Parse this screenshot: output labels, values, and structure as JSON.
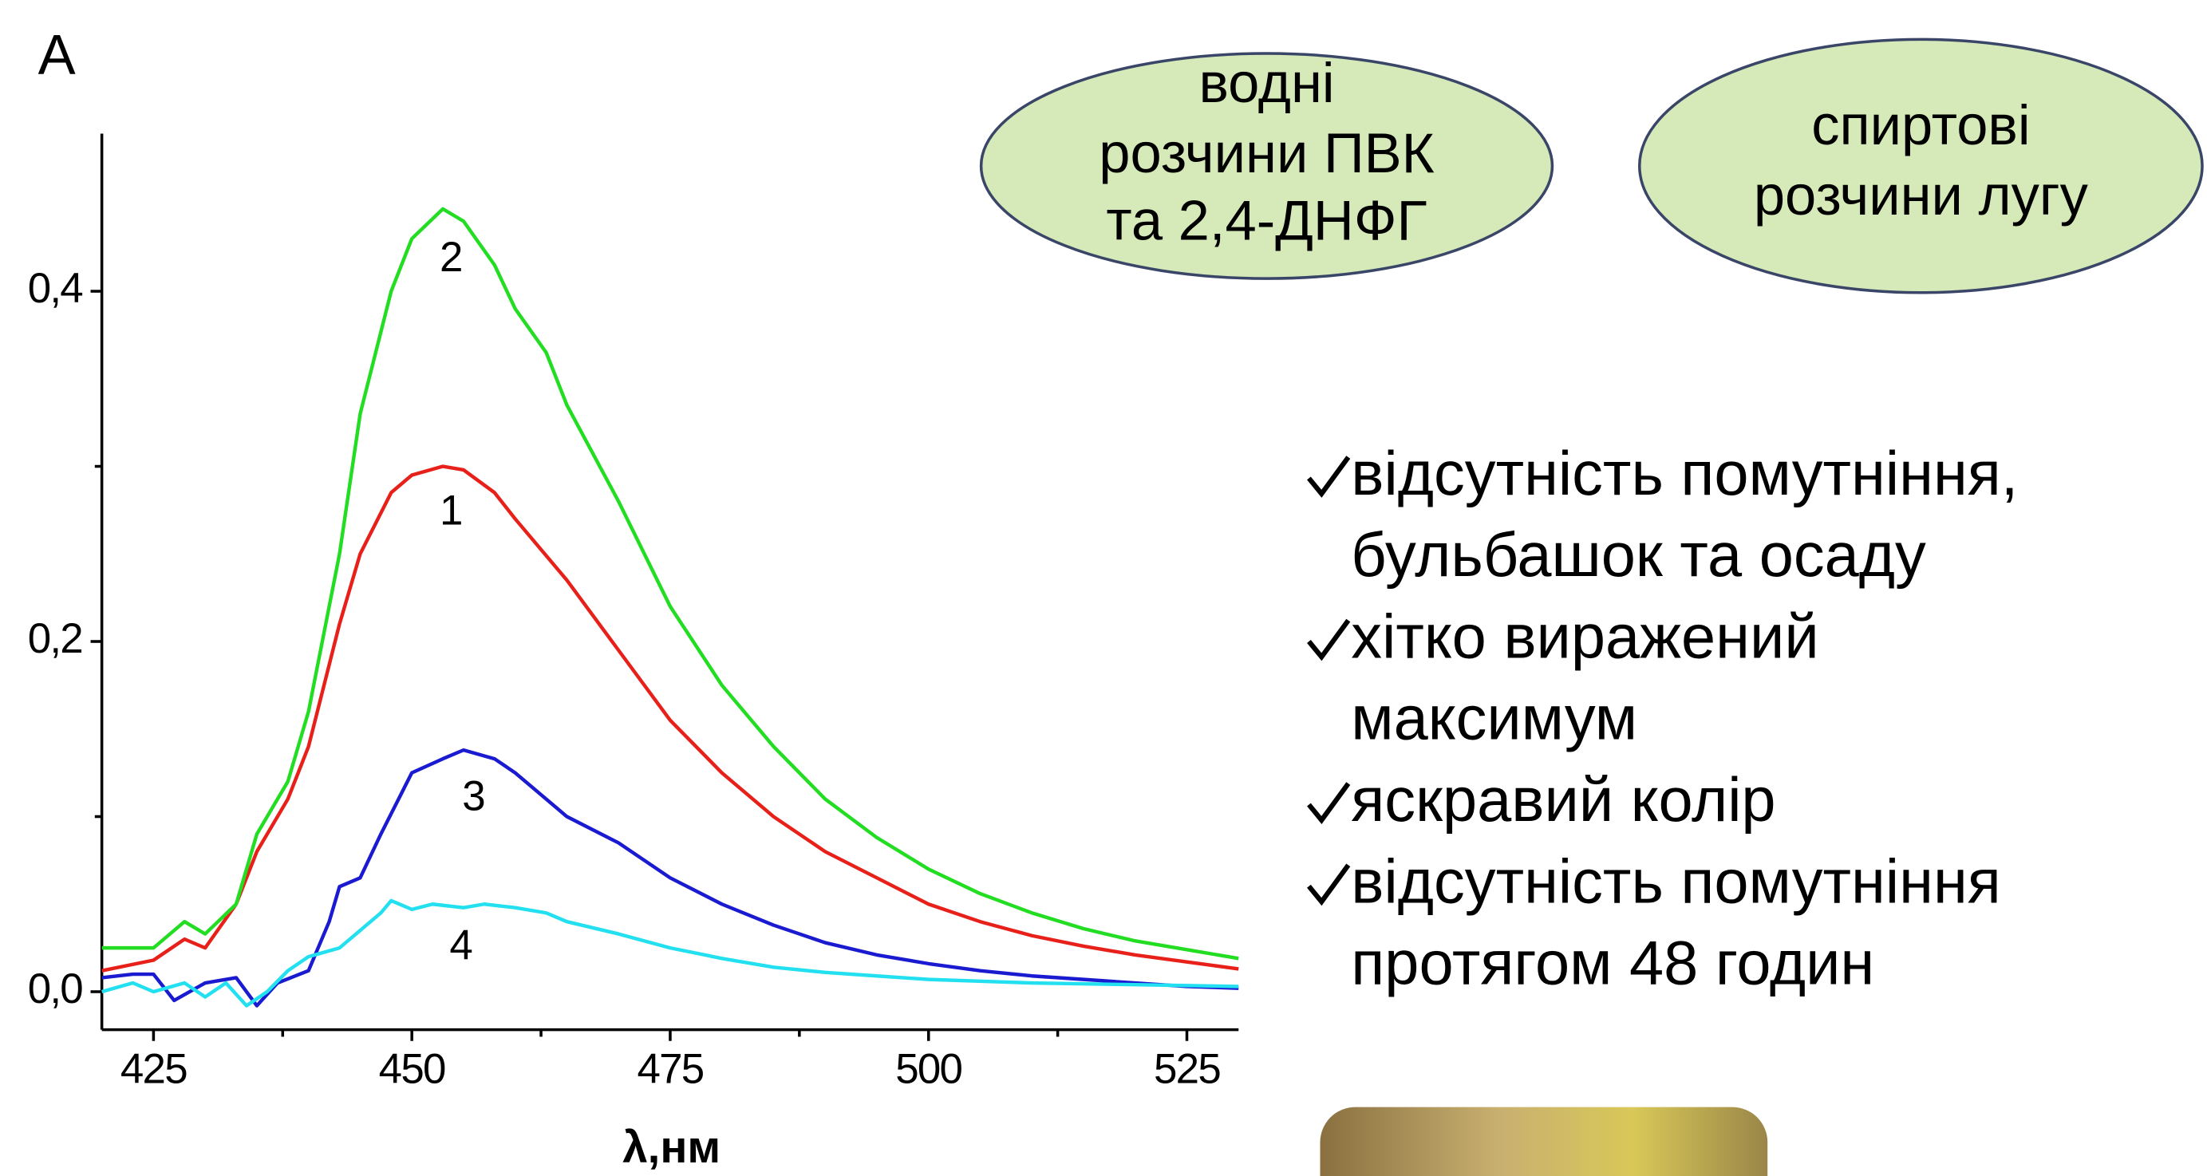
{
  "chart_data": {
    "type": "line",
    "y_label": "A",
    "x_label": "λ,нм",
    "xlim": [
      420,
      530
    ],
    "ylim": [
      -0.0217,
      0.49
    ],
    "xticks": [
      425,
      450,
      475,
      500,
      525
    ],
    "xminorticks": [
      437.5,
      462.5,
      487.5,
      512.5
    ],
    "yticks": [
      {
        "value": 0,
        "label": "0,0"
      },
      {
        "value": 0.2,
        "label": "0,2"
      },
      {
        "value": 0.4,
        "label": "0,4"
      }
    ],
    "yminorticks": [
      0.1,
      0.3
    ],
    "series": [
      {
        "name": "1",
        "color": "#e8201a",
        "x": [
          420,
          425,
          428,
          430,
          433,
          435,
          438,
          440,
          443,
          445,
          448,
          450,
          453,
          455,
          458,
          460,
          465,
          470,
          475,
          480,
          485,
          490,
          495,
          500,
          505,
          510,
          515,
          520,
          525,
          530
        ],
        "values": [
          0.012,
          0.018,
          0.03,
          0.025,
          0.05,
          0.08,
          0.11,
          0.14,
          0.21,
          0.25,
          0.285,
          0.295,
          0.3,
          0.298,
          0.285,
          0.27,
          0.235,
          0.195,
          0.155,
          0.125,
          0.1,
          0.08,
          0.065,
          0.05,
          0.04,
          0.032,
          0.026,
          0.021,
          0.017,
          0.013
        ]
      },
      {
        "name": "2",
        "color": "#22dd22",
        "x": [
          420,
          425,
          428,
          430,
          433,
          435,
          438,
          440,
          443,
          445,
          448,
          450,
          453,
          455,
          458,
          460,
          463,
          465,
          470,
          475,
          480,
          485,
          490,
          495,
          500,
          505,
          510,
          515,
          520,
          525,
          530
        ],
        "values": [
          0.025,
          0.025,
          0.04,
          0.033,
          0.05,
          0.09,
          0.12,
          0.16,
          0.25,
          0.33,
          0.4,
          0.43,
          0.447,
          0.44,
          0.415,
          0.39,
          0.365,
          0.335,
          0.28,
          0.22,
          0.175,
          0.14,
          0.11,
          0.088,
          0.07,
          0.056,
          0.045,
          0.036,
          0.029,
          0.024,
          0.019
        ]
      },
      {
        "name": "3",
        "color": "#1a1ad0",
        "x": [
          420,
          423,
          425,
          427,
          430,
          433,
          435,
          437,
          440,
          442,
          443,
          445,
          447,
          450,
          453,
          455,
          458,
          460,
          463,
          465,
          470,
          475,
          480,
          485,
          490,
          495,
          500,
          505,
          510,
          515,
          520,
          525,
          530
        ],
        "values": [
          0.008,
          0.01,
          0.01,
          -0.005,
          0.005,
          0.008,
          -0.008,
          0.005,
          0.012,
          0.04,
          0.06,
          0.065,
          0.09,
          0.125,
          0.133,
          0.138,
          0.133,
          0.125,
          0.11,
          0.1,
          0.085,
          0.065,
          0.05,
          0.038,
          0.028,
          0.021,
          0.016,
          0.012,
          0.009,
          0.007,
          0.005,
          0.003,
          0.002
        ]
      },
      {
        "name": "4",
        "color": "#22e0f0",
        "x": [
          420,
          423,
          425,
          428,
          430,
          432,
          434,
          436,
          438,
          440,
          443,
          445,
          447,
          448,
          450,
          452,
          455,
          457,
          460,
          463,
          465,
          470,
          475,
          480,
          485,
          490,
          495,
          500,
          510,
          520,
          530
        ],
        "values": [
          0.0,
          0.005,
          0.0,
          0.005,
          -0.003,
          0.005,
          -0.008,
          0.0,
          0.012,
          0.02,
          0.025,
          0.035,
          0.045,
          0.052,
          0.047,
          0.05,
          0.048,
          0.05,
          0.048,
          0.045,
          0.04,
          0.033,
          0.025,
          0.019,
          0.014,
          0.011,
          0.009,
          0.007,
          0.005,
          0.004,
          0.003
        ]
      }
    ]
  },
  "ovals": [
    [
      "водні",
      "розчини ПВК",
      "та 2,4-ДНФГ"
    ],
    [
      "спиртові",
      "розчини лугу"
    ]
  ],
  "checklist": [
    [
      "відсутність помутніння,",
      "бульбашок та осаду"
    ],
    [
      "хітко виражений",
      "максимум"
    ],
    [
      "яскравий колір"
    ],
    [
      "відсутність помутніння",
      "протягом 48 годин"
    ]
  ]
}
